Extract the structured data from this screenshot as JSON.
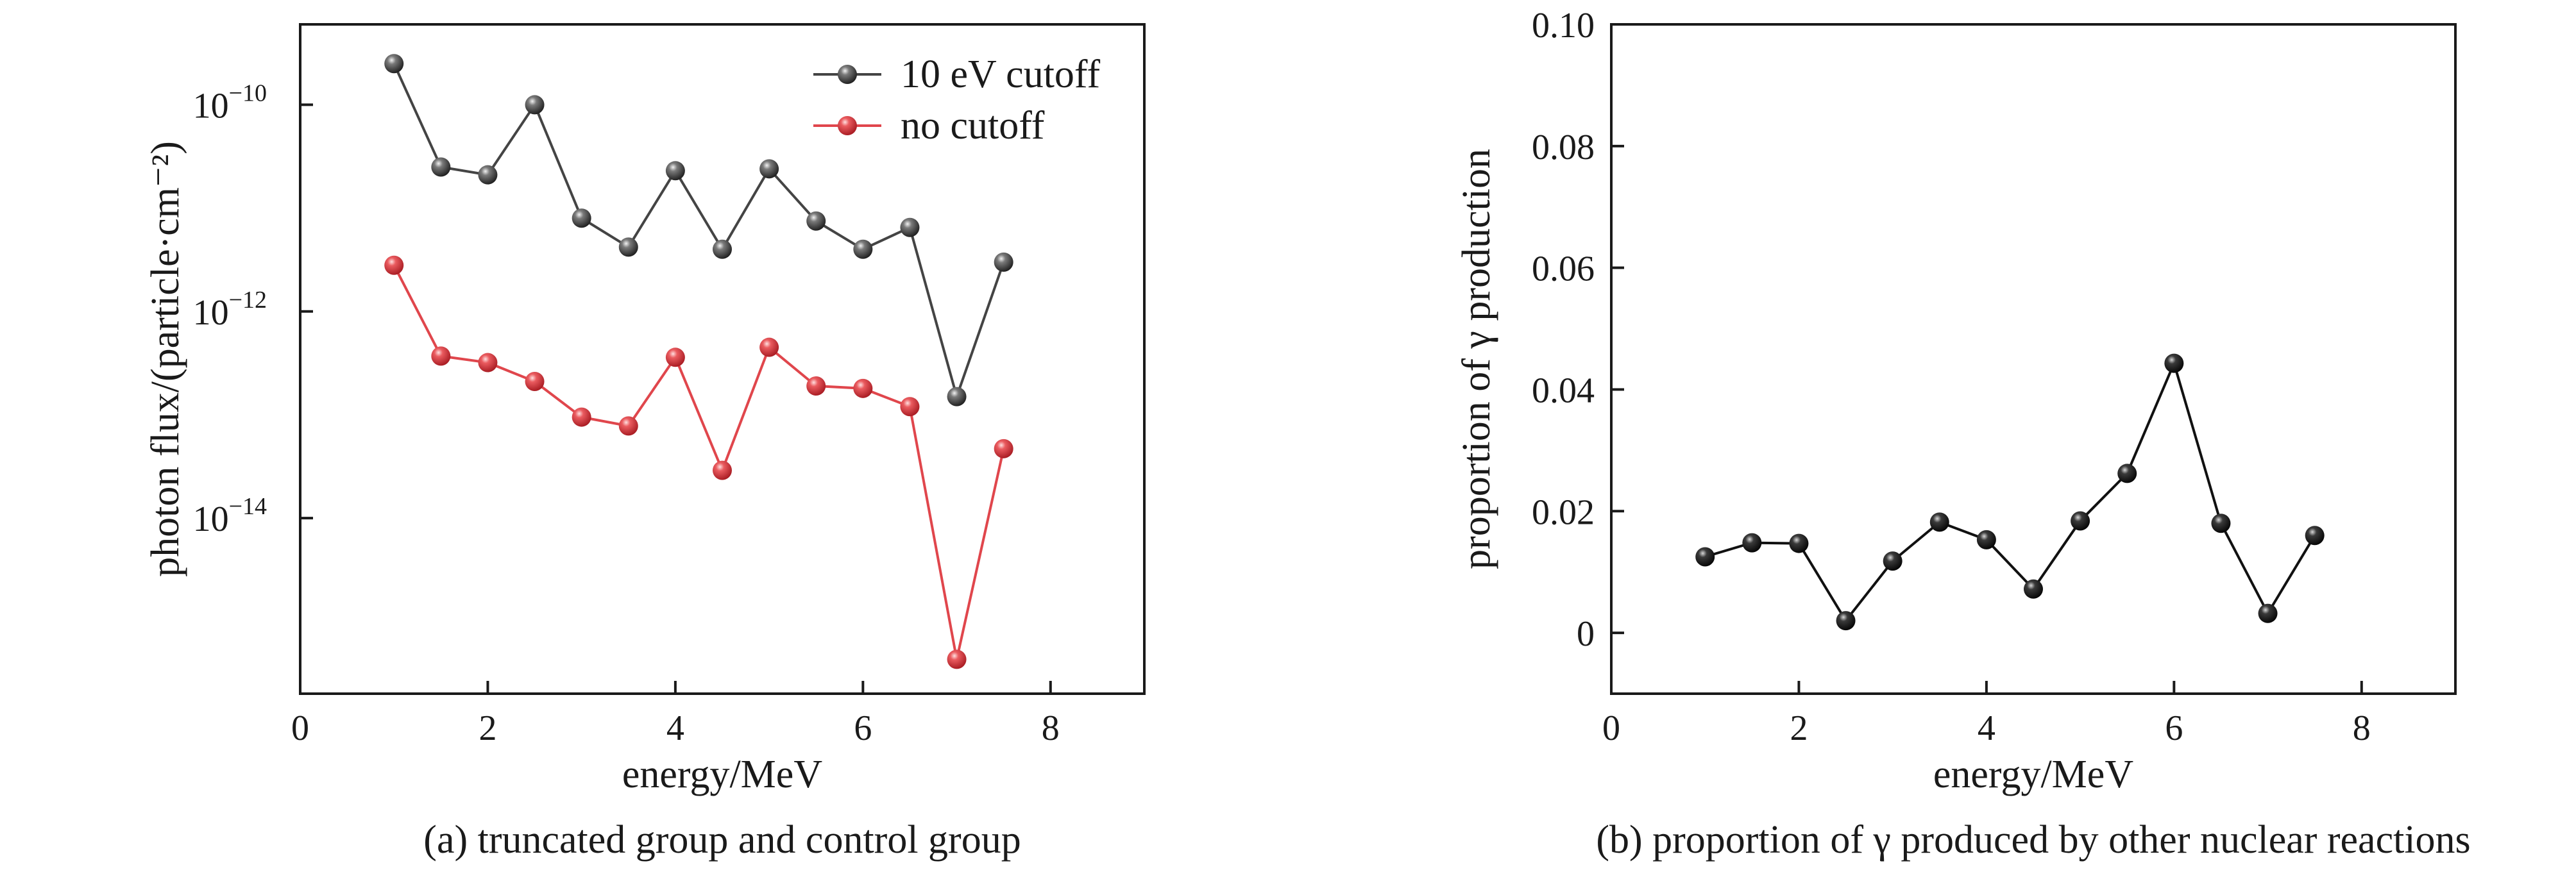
{
  "chart_data": [
    {
      "type": "line",
      "caption": "(a) truncated group and control group",
      "xlabel": "energy/MeV",
      "ylabel": "photon flux/(particle·cm⁻²)",
      "xlim": [
        0,
        9
      ],
      "ylim": [
        2e-16,
        6e-10
      ],
      "yscale": "log",
      "xticks": [
        0,
        2,
        4,
        6,
        8
      ],
      "yticks": [
        {
          "value": 1e-10,
          "base": "10",
          "exp": "−10"
        },
        {
          "value": 1e-12,
          "base": "10",
          "exp": "−12"
        },
        {
          "value": 1e-14,
          "base": "10",
          "exp": "−14"
        }
      ],
      "legend_position": "top-right",
      "x": [
        1.0,
        1.5,
        2.0,
        2.5,
        3.0,
        3.5,
        4.0,
        4.5,
        5.0,
        5.5,
        6.0,
        6.5,
        7.0,
        7.5
      ],
      "series": [
        {
          "name": "10 eV cutoff",
          "color": "#444444",
          "marker": "sphere",
          "values": [
            2.5e-10,
            2.5e-11,
            2.1e-11,
            1e-10,
            8e-12,
            4.2e-12,
            2.3e-11,
            4e-12,
            2.4e-11,
            7.5e-12,
            4e-12,
            6.5e-12,
            1.5e-13,
            3e-12
          ]
        },
        {
          "name": "no cutoff",
          "color": "#e0464c",
          "marker": "sphere",
          "values": [
            2.8e-12,
            3.7e-13,
            3.2e-13,
            2.1e-13,
            9.5e-14,
            7.8e-14,
            3.6e-13,
            2.9e-14,
            4.5e-13,
            1.9e-13,
            1.8e-13,
            1.2e-13,
            4.3e-16,
            4.7e-14
          ]
        }
      ]
    },
    {
      "type": "line",
      "caption": "(b) proportion of γ produced by other nuclear reactions",
      "xlabel": "energy/MeV",
      "ylabel": "proportion of γ production",
      "xlim": [
        0,
        9
      ],
      "ylim": [
        -0.01,
        0.1
      ],
      "xticks": [
        0,
        2,
        4,
        6,
        8
      ],
      "yticks": [
        "0",
        "0.02",
        "0.04",
        "0.06",
        "0.08",
        "0.10"
      ],
      "x": [
        1.0,
        1.5,
        2.0,
        2.5,
        3.0,
        3.5,
        4.0,
        4.5,
        5.0,
        5.5,
        6.0,
        6.5,
        7.0,
        7.5
      ],
      "series": [
        {
          "color": "#111111",
          "marker": "sphere",
          "values": [
            0.0125,
            0.0148,
            0.0147,
            0.002,
            0.0118,
            0.0182,
            0.0153,
            0.0072,
            0.0184,
            0.0262,
            0.0443,
            0.018,
            0.0032,
            0.016
          ]
        }
      ]
    }
  ]
}
